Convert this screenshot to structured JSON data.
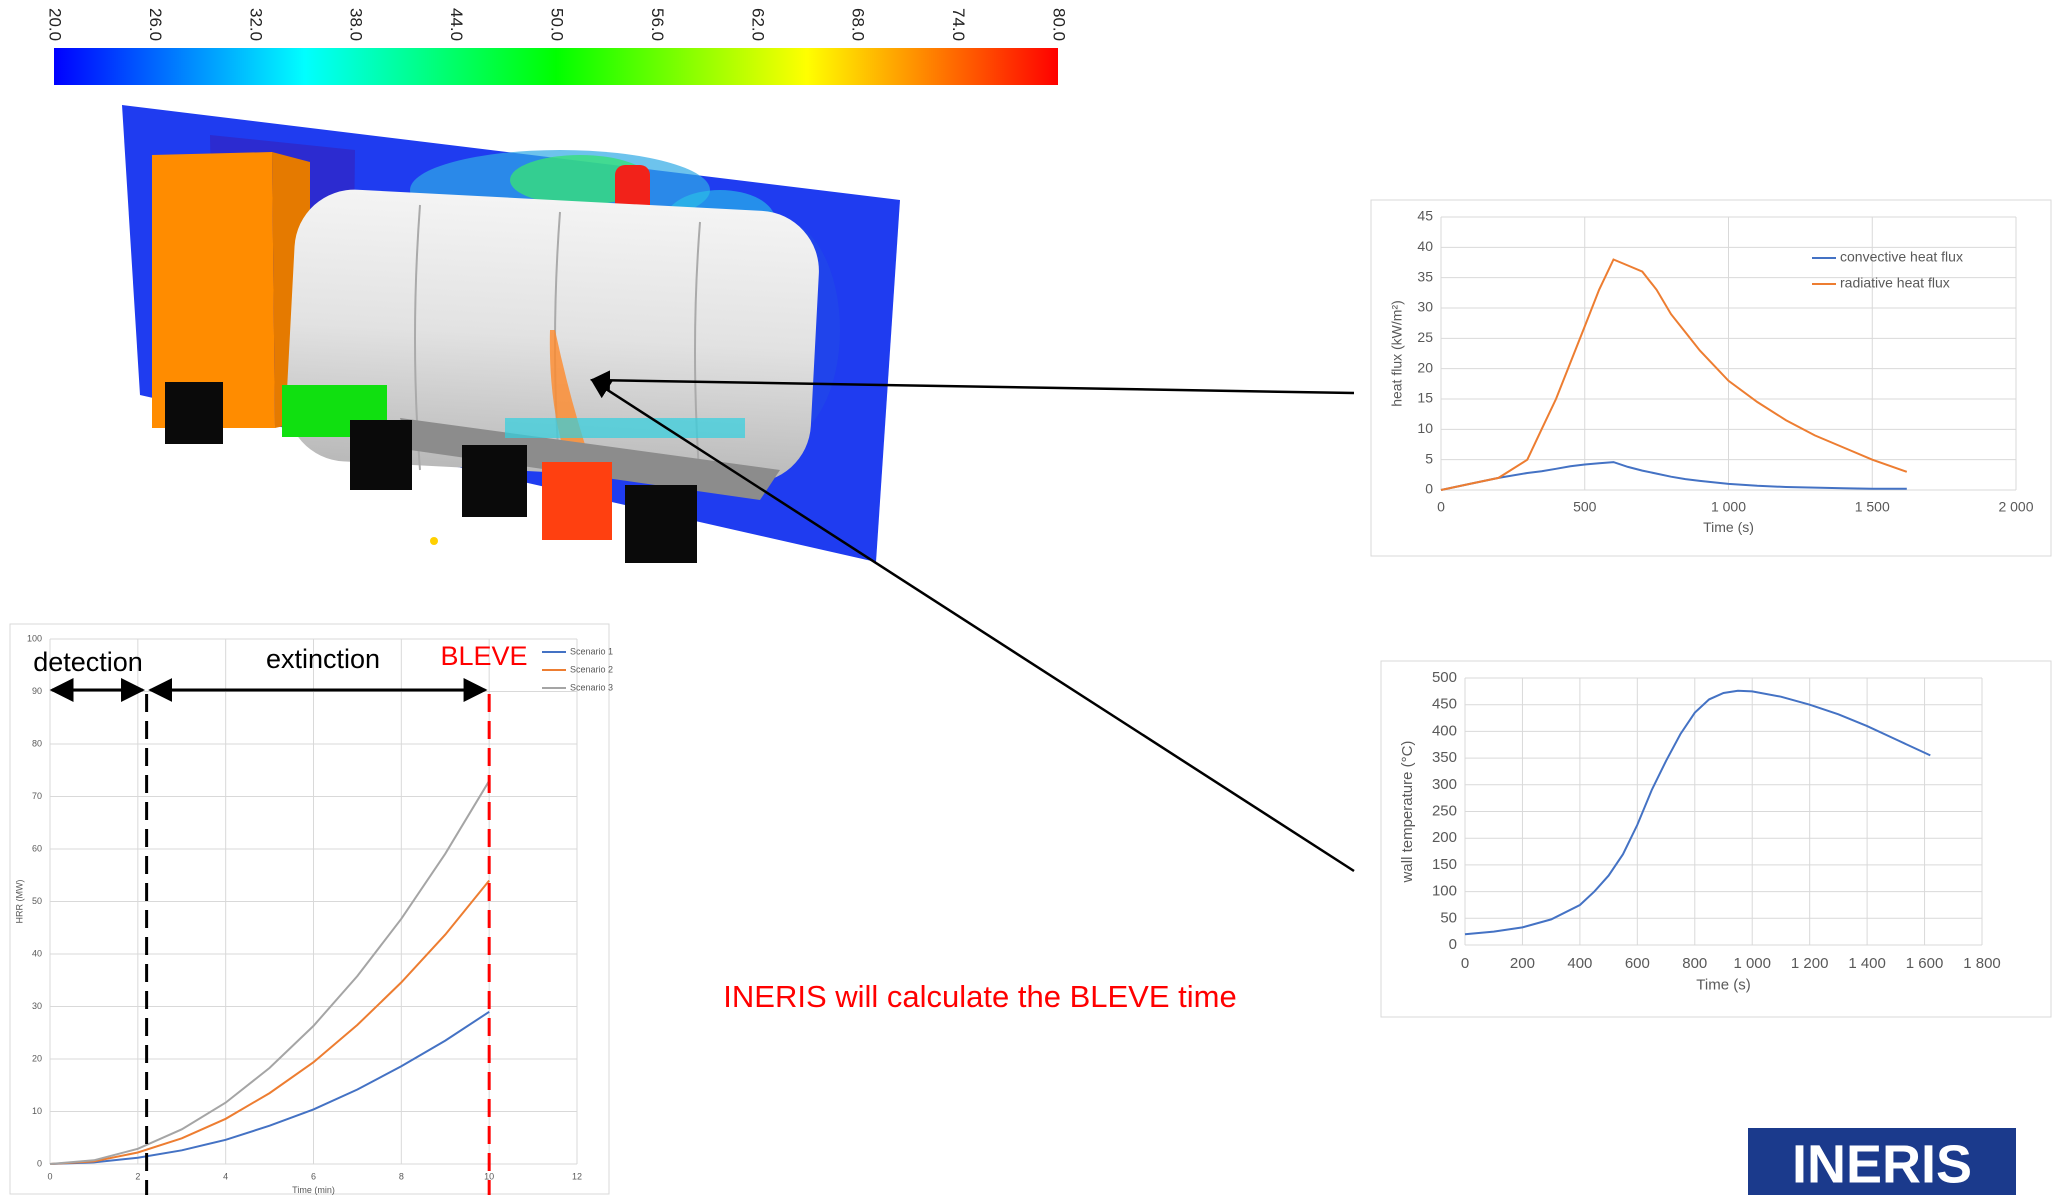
{
  "chart_data": [
    {
      "type": "colorbar",
      "colors": [
        "#0000ff",
        "#00ffff",
        "#00ff00",
        "#ffff00",
        "#ff0000"
      ],
      "xlim": [
        20,
        80
      ],
      "xticks": [
        {
          "value": 20,
          "label": "20.0"
        },
        {
          "value": 26,
          "label": "26.0"
        },
        {
          "value": 32,
          "label": "32.0"
        },
        {
          "value": 38,
          "label": "38.0"
        },
        {
          "value": 44,
          "label": "44.0"
        },
        {
          "value": 50,
          "label": "50.0"
        },
        {
          "value": 56,
          "label": "56.0"
        },
        {
          "value": 62,
          "label": "62.0"
        },
        {
          "value": 68,
          "label": "68.0"
        },
        {
          "value": 74,
          "label": "74.0"
        },
        {
          "value": 80,
          "label": "80.0"
        }
      ]
    },
    {
      "type": "line",
      "x_label": "Time (s)",
      "y_label": "heat flux (kW/m²)",
      "xlim": [
        0,
        2000
      ],
      "xticks": [
        0,
        500,
        {
          "value": 1000,
          "label": "1 000"
        },
        {
          "value": 1500,
          "label": "1 500"
        },
        {
          "value": 2000,
          "label": "2 000"
        }
      ],
      "ylim": [
        0,
        45
      ],
      "yticks": [
        0,
        5,
        10,
        15,
        20,
        25,
        30,
        35,
        40,
        45
      ],
      "grid": true,
      "legend": "top-right",
      "x": [
        0,
        100,
        200,
        300,
        350,
        400,
        450,
        500,
        550,
        600,
        650,
        700,
        750,
        800,
        850,
        900,
        1000,
        1100,
        1200,
        1300,
        1400,
        1500,
        1620
      ],
      "series": [
        {
          "name": "convective heat flux",
          "color": "#4472c4",
          "values": [
            0,
            1,
            2,
            2.8,
            3.1,
            3.5,
            3.9,
            4.2,
            4.4,
            4.6,
            3.8,
            3.2,
            2.7,
            2.2,
            1.8,
            1.5,
            1.0,
            0.7,
            0.5,
            0.4,
            0.3,
            0.2,
            0.2
          ]
        },
        {
          "name": "radiative heat flux",
          "color": "#ed7d31",
          "values": [
            0,
            1,
            2,
            5,
            10,
            15,
            21,
            27,
            33,
            38,
            37,
            36,
            33,
            29,
            26,
            23,
            18,
            14.5,
            11.5,
            9,
            7,
            5,
            3
          ]
        }
      ]
    },
    {
      "type": "line",
      "x_label": "Time (s)",
      "y_label": "wall temperature (°C)",
      "xlim": [
        0,
        1800
      ],
      "xticks": [
        0,
        200,
        400,
        600,
        800,
        {
          "value": 1000,
          "label": "1 000"
        },
        {
          "value": 1200,
          "label": "1 200"
        },
        {
          "value": 1400,
          "label": "1 400"
        },
        {
          "value": 1600,
          "label": "1 600"
        },
        {
          "value": 1800,
          "label": "1 800"
        }
      ],
      "ylim": [
        0,
        500
      ],
      "yticks": [
        0,
        50,
        100,
        150,
        200,
        250,
        300,
        350,
        400,
        450,
        500
      ],
      "grid": true,
      "x": [
        0,
        100,
        200,
        300,
        400,
        450,
        500,
        550,
        600,
        650,
        700,
        750,
        800,
        850,
        900,
        950,
        1000,
        1100,
        1200,
        1300,
        1400,
        1500,
        1620
      ],
      "series": [
        {
          "color": "#4472c4",
          "values": [
            20,
            25,
            33,
            48,
            75,
            100,
            130,
            170,
            225,
            290,
            345,
            395,
            435,
            460,
            472,
            476,
            475,
            465,
            450,
            432,
            410,
            385,
            355
          ]
        }
      ]
    },
    {
      "type": "line",
      "x_label": "Time (min)",
      "y_label": "HRR (MW)",
      "xlim": [
        0,
        12
      ],
      "xticks": [
        0,
        2,
        4,
        6,
        8,
        10,
        12
      ],
      "ylim": [
        0,
        100
      ],
      "yticks": [
        0,
        10,
        20,
        30,
        40,
        50,
        60,
        70,
        80,
        90,
        100
      ],
      "grid": true,
      "legend": "top-right",
      "x": [
        0,
        1,
        2,
        3,
        4,
        5,
        6,
        7,
        8,
        9,
        10
      ],
      "series": [
        {
          "name": "Scenario 1",
          "color": "#4472c4",
          "values": [
            0,
            0.3,
            1.2,
            2.6,
            4.6,
            7.3,
            10.4,
            14.2,
            18.6,
            23.5,
            29
          ]
        },
        {
          "name": "Scenario 2",
          "color": "#ed7d31",
          "values": [
            0,
            0.5,
            2.2,
            4.9,
            8.6,
            13.5,
            19.4,
            26.5,
            34.6,
            43.7,
            54
          ]
        },
        {
          "name": "Scenario 3",
          "color": "#a5a5a5",
          "values": [
            0,
            0.7,
            2.9,
            6.6,
            11.7,
            18.3,
            26.3,
            35.8,
            46.7,
            59.1,
            73
          ]
        }
      ],
      "vlines": [
        {
          "x": 2.2,
          "color": "#000000"
        },
        {
          "x": 10,
          "color": "#ff0000"
        }
      ],
      "annotations": [
        "detection",
        "extinction",
        "BLEVE"
      ]
    }
  ],
  "caption": "INERIS will calculate the BLEVE time",
  "logo": "INERIS"
}
